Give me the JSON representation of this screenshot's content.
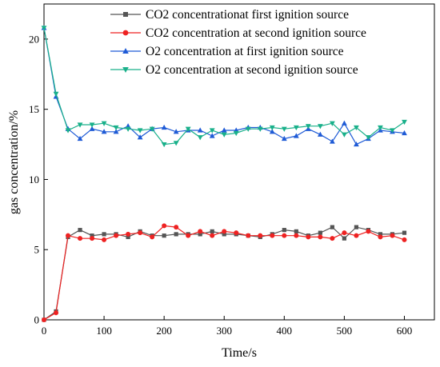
{
  "chart_data": {
    "type": "line",
    "xlabel": "Time/s",
    "ylabel": "gas concentration/%",
    "xlim": [
      0,
      650
    ],
    "ylim": [
      0,
      22.5
    ],
    "x_ticks": [
      0,
      100,
      200,
      300,
      400,
      500,
      600
    ],
    "y_ticks": [
      0,
      5,
      10,
      15,
      20
    ],
    "grid": false,
    "legend_position": "top-right",
    "x": [
      0,
      20,
      40,
      60,
      80,
      100,
      120,
      140,
      160,
      180,
      200,
      220,
      240,
      260,
      280,
      300,
      320,
      340,
      360,
      380,
      400,
      420,
      440,
      460,
      480,
      500,
      520,
      540,
      560,
      580,
      600
    ],
    "series": [
      {
        "name": "CO2 concentrationat first ignition source",
        "color": "#555555",
        "marker": "square",
        "values": [
          0,
          0.6,
          5.9,
          6.4,
          6.0,
          6.1,
          6.1,
          5.9,
          6.3,
          6.0,
          6.0,
          6.1,
          6.1,
          6.1,
          6.3,
          6.1,
          6.1,
          6.0,
          5.9,
          6.1,
          6.4,
          6.3,
          6.0,
          6.2,
          6.6,
          5.8,
          6.6,
          6.4,
          6.1,
          6.1,
          6.2
        ]
      },
      {
        "name": "CO2 concentration at second ignition source",
        "color": "#ee2222",
        "marker": "circle",
        "values": [
          0,
          0.5,
          6.0,
          5.8,
          5.8,
          5.7,
          6.0,
          6.1,
          6.2,
          5.9,
          6.7,
          6.6,
          6.0,
          6.3,
          6.0,
          6.3,
          6.2,
          6.0,
          6.0,
          6.0,
          6.0,
          6.0,
          5.9,
          5.9,
          5.8,
          6.2,
          6.0,
          6.3,
          5.9,
          6.0,
          5.7
        ]
      },
      {
        "name": "O2 concentration at first ignition source",
        "color": "#1f5bd6",
        "marker": "triangle-up",
        "values": [
          20.8,
          15.9,
          13.6,
          12.9,
          13.6,
          13.4,
          13.4,
          13.8,
          13.0,
          13.6,
          13.7,
          13.4,
          13.5,
          13.5,
          13.1,
          13.5,
          13.5,
          13.7,
          13.7,
          13.4,
          12.9,
          13.1,
          13.6,
          13.2,
          12.7,
          14.0,
          12.5,
          12.9,
          13.5,
          13.4,
          13.3
        ]
      },
      {
        "name": "O2 concentration at second ignition source",
        "color": "#19b08a",
        "marker": "triangle-down",
        "values": [
          20.8,
          16.1,
          13.5,
          13.9,
          13.9,
          14.0,
          13.7,
          13.6,
          13.5,
          13.6,
          12.5,
          12.6,
          13.6,
          13.0,
          13.5,
          13.2,
          13.3,
          13.6,
          13.6,
          13.7,
          13.6,
          13.7,
          13.8,
          13.8,
          14.0,
          13.2,
          13.7,
          13.0,
          13.7,
          13.5,
          14.1
        ]
      }
    ]
  }
}
